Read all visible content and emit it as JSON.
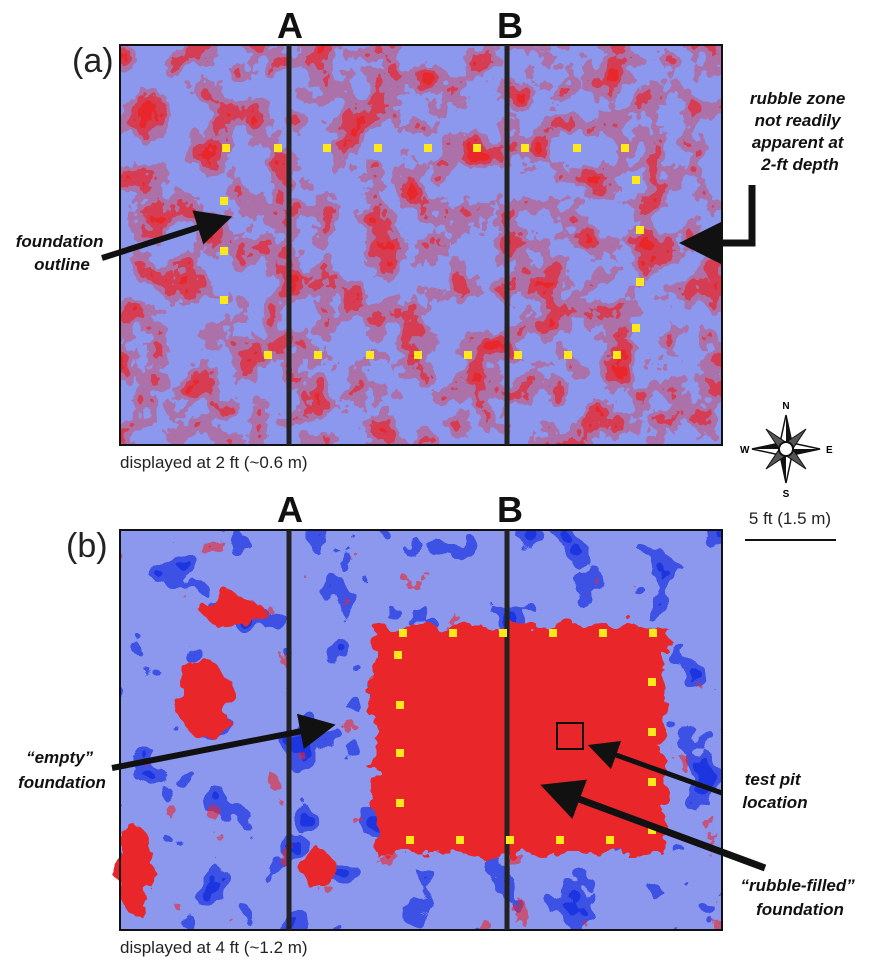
{
  "panel_a": {
    "label": "(a)",
    "line_labels": [
      "A",
      "B"
    ],
    "caption": "displayed at 2 ft (~0.6 m)",
    "annotations": [
      {
        "lines": [
          "rubble zone",
          "not readily",
          "apparent at",
          "2-ft depth"
        ]
      },
      {
        "lines": [
          "foundation",
          "outline"
        ]
      }
    ]
  },
  "panel_b": {
    "label": "(b)",
    "line_labels": [
      "A",
      "B"
    ],
    "caption": "displayed at 4 ft (~1.2 m)",
    "annotations": [
      {
        "lines": [
          "“empty”",
          "foundation"
        ]
      },
      {
        "lines": [
          "test pit",
          "location"
        ]
      },
      {
        "lines": [
          "“rubble-filled”",
          "foundation"
        ]
      }
    ]
  },
  "compass": {
    "n": "N",
    "e": "E",
    "s": "S",
    "w": "W"
  },
  "scale_bar": "5 ft (1.5 m)"
}
